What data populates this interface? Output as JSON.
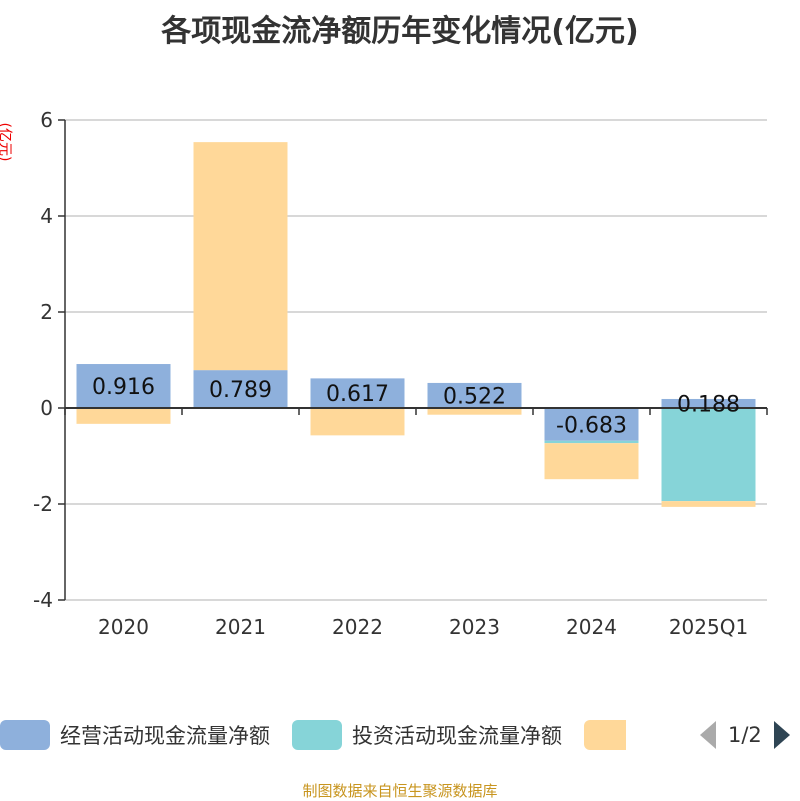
{
  "chart_data": {
    "type": "bar",
    "stacked": true,
    "title": "各项现金流净额历年变化情况(亿元)",
    "ylabel": "(亿元)",
    "ylim": [
      -4,
      6
    ],
    "yticks": [
      -4,
      -2,
      0,
      2,
      4,
      6
    ],
    "grid": true,
    "categories": [
      "2020",
      "2021",
      "2022",
      "2023",
      "2024",
      "2025Q1"
    ],
    "series": [
      {
        "name": "经营活动现金流量净额",
        "color": "#8eb0dc",
        "values": [
          0.916,
          0.789,
          0.617,
          0.522,
          -0.683,
          0.188
        ],
        "labels": [
          "0.916",
          "0.789",
          "0.617",
          "0.522",
          "-0.683",
          "0.188"
        ]
      },
      {
        "name": "投资活动现金流量净额",
        "color": "#86d4d8",
        "values": [
          -0.01,
          0.0,
          -0.02,
          0.0,
          -0.05,
          -1.94
        ]
      },
      {
        "color": "#ffd899",
        "values": [
          -0.32,
          4.75,
          -0.55,
          -0.14,
          -0.75,
          -0.12
        ]
      }
    ],
    "legend_position": "bottom"
  },
  "legend_pager": "1/2",
  "source": "制图数据来自恒生聚源数据库"
}
